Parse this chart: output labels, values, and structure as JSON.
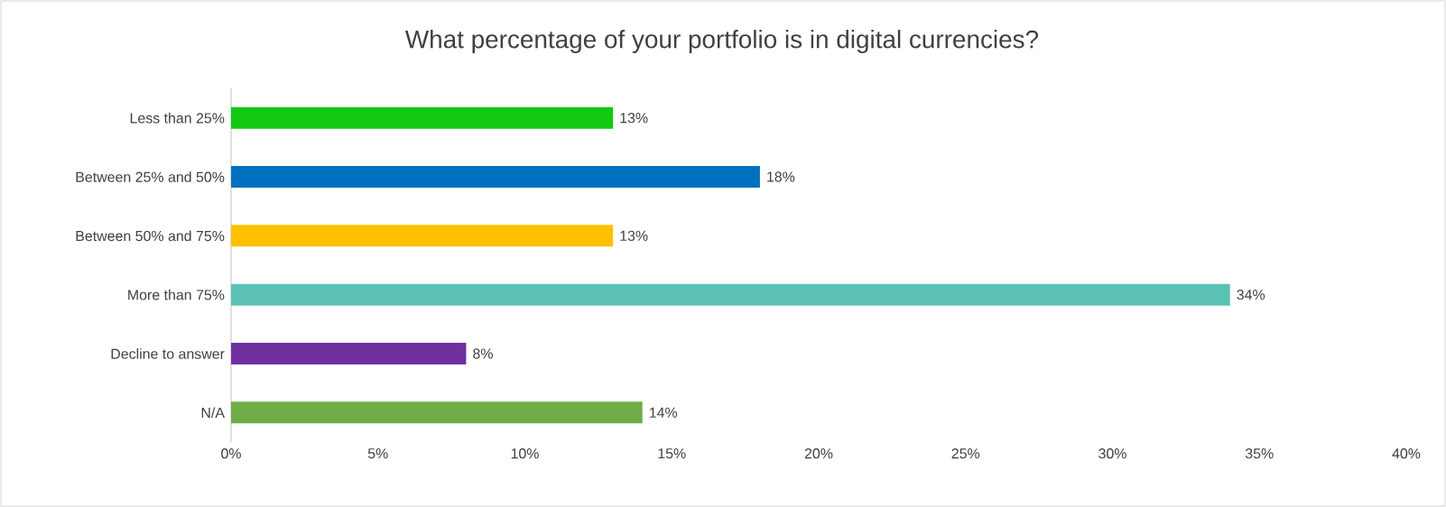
{
  "chart_data": {
    "type": "bar",
    "orientation": "horizontal",
    "title": "What percentage of your portfolio is in digital currencies?",
    "categories": [
      "Less than 25%",
      "Between 25% and 50%",
      "Between 50% and 75%",
      "More than 75%",
      "Decline to answer",
      "N/A"
    ],
    "values": [
      13,
      18,
      13,
      34,
      8,
      14
    ],
    "value_labels": [
      "13%",
      "18%",
      "13%",
      "34%",
      "8%",
      "14%"
    ],
    "colors": [
      "#12c812",
      "#0070c0",
      "#ffc000",
      "#5bc1b5",
      "#7030a0",
      "#70ad47"
    ],
    "xlim": [
      0,
      40
    ],
    "xticks": [
      {
        "value": 0,
        "label": "0%"
      },
      {
        "value": 5,
        "label": "5%"
      },
      {
        "value": 10,
        "label": "10%"
      },
      {
        "value": 15,
        "label": "15%"
      },
      {
        "value": 20,
        "label": "20%"
      },
      {
        "value": 25,
        "label": "25%"
      },
      {
        "value": 30,
        "label": "30%"
      },
      {
        "value": 35,
        "label": "35%"
      },
      {
        "value": 40,
        "label": "40%"
      }
    ],
    "grid": false
  }
}
